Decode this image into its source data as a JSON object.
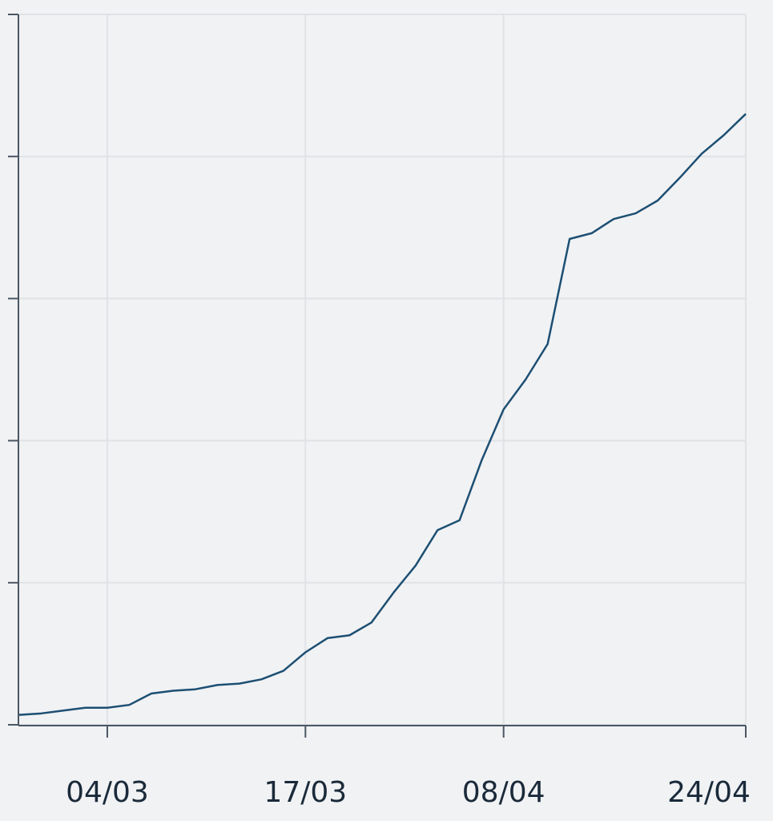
{
  "chart_data": {
    "type": "line",
    "categories": [
      null,
      null,
      null,
      null,
      "04/03",
      null,
      null,
      null,
      null,
      null,
      null,
      null,
      null,
      "17/03",
      null,
      null,
      null,
      null,
      null,
      null,
      null,
      null,
      "08/04",
      null,
      null,
      null,
      null,
      null,
      null,
      null,
      null,
      null,
      null,
      "24/04"
    ],
    "series": [
      {
        "color": "#1d4f73",
        "values": [
          0.07,
          0.08,
          0.1,
          0.12,
          0.12,
          0.14,
          0.22,
          0.24,
          0.25,
          0.28,
          0.29,
          0.32,
          0.38,
          0.51,
          0.61,
          0.63,
          0.72,
          0.93,
          1.12,
          1.37,
          1.44,
          1.86,
          2.22,
          2.43,
          2.68,
          3.42,
          3.46,
          3.56,
          3.6,
          3.69,
          3.85,
          4.02,
          4.15,
          4.3
        ]
      }
    ],
    "ylim": [
      0,
      5
    ],
    "yticks": [
      0,
      1,
      2,
      3,
      4,
      5
    ],
    "grid": true
  }
}
